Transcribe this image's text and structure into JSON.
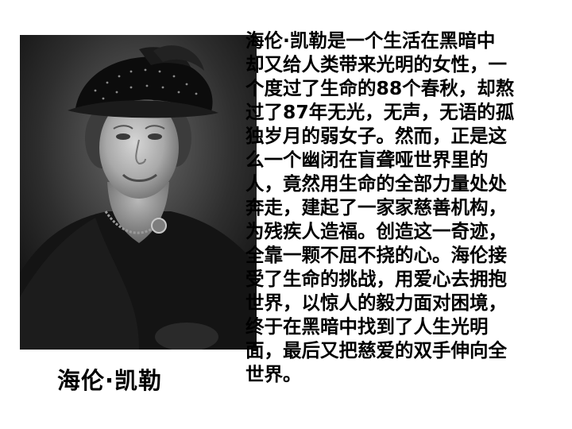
{
  "portrait": {
    "caption": "海伦·凯勒"
  },
  "biography": {
    "lines": [
      "海伦·凯勒是一个生活在黑暗中",
      "却又给人类带来光明的女性，一",
      "个度过了生命的88个春秋，却熬",
      "过了87年无光，无声，无语的孤",
      "独岁月的弱女子。然而，正是这",
      "么一个幽闭在盲聋哑世界里的",
      "人，竟然用生命的全部力量处处",
      "奔走，建起了一家家慈善机构，",
      "为残疾人造福。创造这一奇迹，",
      "全靠一颗不屈不挠的心。海伦接",
      "受了生命的挑战，用爱心去拥抱",
      "世界，以惊人的毅力面对困境，",
      "终于在黑暗中找到了人生光明",
      "面，最后又把慈爱的双手伸向全",
      "世界。"
    ]
  }
}
